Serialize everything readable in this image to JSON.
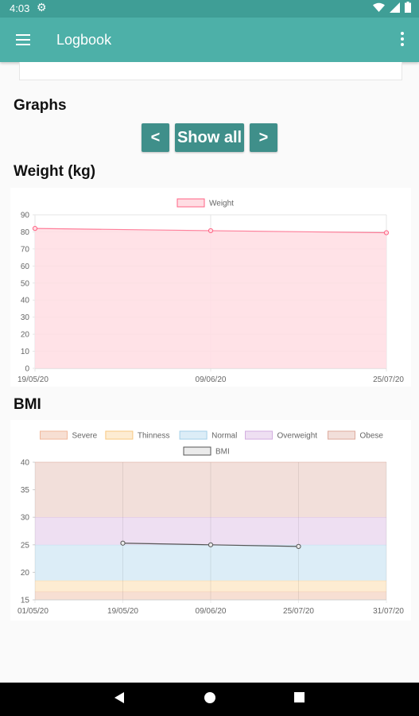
{
  "status": {
    "time": "4:03"
  },
  "appbar": {
    "title": "Logbook"
  },
  "graphs": {
    "heading": "Graphs",
    "prev_label": "<",
    "showall_label": "Show all",
    "next_label": ">"
  },
  "chart_data": [
    {
      "type": "area",
      "title": "Weight (kg)",
      "legend": [
        "Weight"
      ],
      "x": [
        "19/05/20",
        "09/06/20",
        "25/07/20"
      ],
      "series": [
        {
          "name": "Weight",
          "values": [
            82,
            80.7,
            79.5
          ],
          "color": "#ff6384",
          "fill": "#ffdde3"
        }
      ],
      "yticks": [
        0,
        10,
        20,
        30,
        40,
        50,
        60,
        70,
        80,
        90
      ],
      "ylim": [
        0,
        90
      ],
      "grid": true,
      "legend_position": "top"
    },
    {
      "type": "line",
      "title": "BMI",
      "legend": [
        {
          "name": "Severe",
          "color": "#f7dfd3",
          "border": "#f0b89c"
        },
        {
          "name": "Thinness",
          "color": "#fdecd2",
          "border": "#f8c981"
        },
        {
          "name": "Normal",
          "color": "#dcedf7",
          "border": "#a3cfe8"
        },
        {
          "name": "Overweight",
          "color": "#eedff2",
          "border": "#d3aee0"
        },
        {
          "name": "Obese",
          "color": "#f2dfda",
          "border": "#deab9e"
        },
        {
          "name": "BMI",
          "color": "#ebebeb",
          "border": "#555555"
        }
      ],
      "x": [
        "01/05/20",
        "19/05/20",
        "09/06/20",
        "25/07/20",
        "31/07/20"
      ],
      "series": [
        {
          "name": "BMI",
          "x": [
            "19/05/20",
            "09/06/20",
            "25/07/20"
          ],
          "values": [
            25.3,
            25.0,
            24.7
          ],
          "color": "#555555"
        }
      ],
      "bands": [
        {
          "name": "Severe",
          "from": 15,
          "to": 16.5,
          "color": "#f7dfd3",
          "border": "#f0b89c"
        },
        {
          "name": "Thinness",
          "from": 16.5,
          "to": 18.5,
          "color": "#fdecd2",
          "border": "#f8c981"
        },
        {
          "name": "Normal",
          "from": 18.5,
          "to": 25,
          "color": "#dcedf7",
          "border": "#a3cfe8"
        },
        {
          "name": "Overweight",
          "from": 25,
          "to": 30,
          "color": "#eedff2",
          "border": "#d3aee0"
        },
        {
          "name": "Obese",
          "from": 30,
          "to": 40,
          "color": "#f2dfda",
          "border": "#deab9e"
        }
      ],
      "yticks": [
        15,
        20,
        25,
        30,
        35,
        40
      ],
      "ylim": [
        15,
        40
      ],
      "grid": true,
      "legend_position": "top"
    }
  ]
}
